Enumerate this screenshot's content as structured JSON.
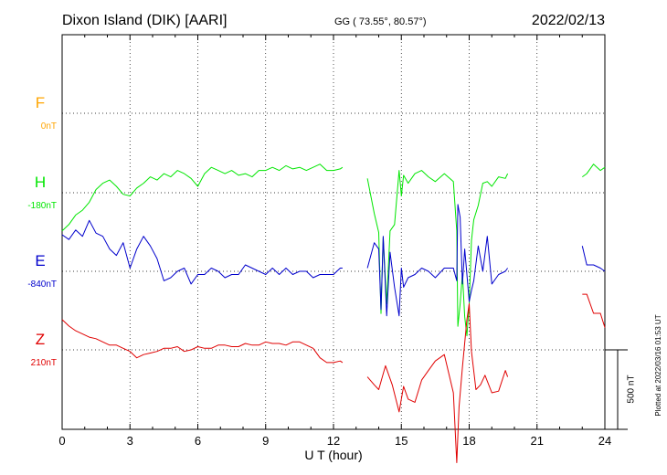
{
  "header": {
    "station": "Dixon Island (DIK)  [AARI]",
    "coords": "GG ( 73.55°,  80.57°)",
    "date": "2022/02/13"
  },
  "plotted_note": "Plotted at 2022/03/16 01:53 UT",
  "scale_bar_label": "500 nT",
  "chart_data": {
    "type": "line",
    "title": "Dixon Island (DIK)  [AARI]",
    "xlabel": "U T (hour)",
    "ylabel": "",
    "xlim": [
      0,
      24
    ],
    "xticks": [
      "0",
      "3",
      "6",
      "9",
      "12",
      "15",
      "18",
      "21",
      "24"
    ],
    "grid": true,
    "scale_bar_nT": 500,
    "series": [
      {
        "name": "F",
        "baseline_label": "0nT",
        "color": "#ffa500",
        "offset_nT": 0,
        "x": [],
        "y": []
      },
      {
        "name": "H",
        "baseline_label": "-180nT",
        "color": "#00e600",
        "offset_nT": -180,
        "x": [
          0.0,
          0.3,
          0.6,
          0.9,
          1.2,
          1.5,
          1.8,
          2.1,
          2.4,
          2.7,
          3.0,
          3.3,
          3.6,
          3.9,
          4.2,
          4.5,
          4.8,
          5.1,
          5.4,
          5.7,
          6.0,
          6.3,
          6.6,
          6.9,
          7.2,
          7.5,
          7.8,
          8.1,
          8.4,
          8.7,
          9.0,
          9.3,
          9.6,
          9.9,
          10.2,
          10.5,
          10.8,
          11.1,
          11.4,
          11.7,
          12.0,
          12.3,
          12.4,
          13.5,
          13.8,
          14.0,
          14.1,
          14.2,
          14.35,
          14.5,
          14.7,
          14.9,
          15.0,
          15.1,
          15.3,
          15.6,
          15.9,
          16.2,
          16.5,
          16.9,
          17.3,
          17.45,
          17.5,
          17.6,
          17.7,
          17.8,
          17.9,
          18.0,
          18.1,
          18.2,
          18.4,
          18.6,
          18.8,
          19.0,
          19.3,
          19.6,
          19.7,
          23.0,
          23.2,
          23.5,
          23.8,
          24.0
        ],
        "y": [
          -420,
          -380,
          -320,
          -290,
          -240,
          -160,
          -120,
          -100,
          -140,
          -190,
          -200,
          -150,
          -120,
          -80,
          -100,
          -60,
          -80,
          -40,
          -60,
          -90,
          -140,
          -60,
          -20,
          -40,
          -60,
          -40,
          -70,
          -60,
          -80,
          -40,
          -40,
          -20,
          -40,
          -10,
          -30,
          -20,
          -40,
          -20,
          0,
          -40,
          -40,
          -30,
          -20,
          -90,
          -310,
          -430,
          -940,
          -460,
          -880,
          -420,
          -380,
          -40,
          -200,
          -70,
          -120,
          -60,
          -40,
          -80,
          -110,
          -60,
          -110,
          -420,
          -1020,
          -880,
          -690,
          -960,
          -1080,
          -880,
          -480,
          -350,
          -260,
          -120,
          -110,
          -140,
          -80,
          -90,
          -60,
          -80,
          -60,
          0,
          -40,
          -20
        ],
        "gaps_after_x": [
          12.4,
          19.7
        ]
      },
      {
        "name": "E",
        "baseline_label": "-840nT",
        "color": "#0000cc",
        "offset_nT": -840,
        "x": [
          0.0,
          0.3,
          0.6,
          0.9,
          1.2,
          1.5,
          1.8,
          2.1,
          2.4,
          2.7,
          3.0,
          3.3,
          3.6,
          3.9,
          4.2,
          4.5,
          4.8,
          5.1,
          5.4,
          5.7,
          6.0,
          6.3,
          6.6,
          6.9,
          7.2,
          7.5,
          7.8,
          8.1,
          8.4,
          8.7,
          9.0,
          9.3,
          9.6,
          9.9,
          10.2,
          10.5,
          10.8,
          11.1,
          11.4,
          11.7,
          12.0,
          12.3,
          12.4,
          13.5,
          13.8,
          14.0,
          14.1,
          14.2,
          14.35,
          14.5,
          14.7,
          14.9,
          15.0,
          15.1,
          15.3,
          15.6,
          15.9,
          16.2,
          16.5,
          16.9,
          17.3,
          17.45,
          17.5,
          17.6,
          17.7,
          17.8,
          17.9,
          18.0,
          18.1,
          18.2,
          18.4,
          18.6,
          18.8,
          19.0,
          19.3,
          19.6,
          19.7,
          23.0,
          23.2,
          23.5,
          23.8,
          24.0
        ],
        "y": [
          -610,
          -640,
          -580,
          -620,
          -520,
          -600,
          -620,
          -700,
          -740,
          -660,
          -820,
          -700,
          -620,
          -680,
          -760,
          -900,
          -880,
          -840,
          -820,
          -920,
          -860,
          -860,
          -820,
          -840,
          -880,
          -860,
          -860,
          -800,
          -820,
          -840,
          -860,
          -820,
          -860,
          -820,
          -860,
          -840,
          -840,
          -880,
          -860,
          -860,
          -860,
          -820,
          -820,
          -820,
          -660,
          -700,
          -1080,
          -620,
          -1120,
          -720,
          -940,
          -1120,
          -820,
          -940,
          -880,
          -860,
          -820,
          -840,
          -880,
          -820,
          -820,
          -900,
          -420,
          -500,
          -920,
          -700,
          -860,
          -1030,
          -960,
          -900,
          -680,
          -840,
          -620,
          -920,
          -860,
          -840,
          -820,
          -680,
          -800,
          -800,
          -820,
          -840
        ],
        "gaps_after_x": [
          12.4,
          19.7
        ]
      },
      {
        "name": "Z",
        "baseline_label": "210nT",
        "color": "#e00000",
        "offset_nT": 210,
        "x": [
          0.0,
          0.3,
          0.6,
          0.9,
          1.2,
          1.5,
          1.8,
          2.1,
          2.4,
          2.7,
          3.0,
          3.3,
          3.6,
          3.9,
          4.2,
          4.5,
          4.8,
          5.1,
          5.4,
          5.7,
          6.0,
          6.3,
          6.6,
          6.9,
          7.2,
          7.5,
          7.8,
          8.1,
          8.4,
          8.7,
          9.0,
          9.3,
          9.6,
          9.9,
          10.2,
          10.5,
          10.8,
          11.1,
          11.4,
          11.7,
          12.0,
          12.3,
          12.4,
          13.5,
          13.8,
          14.0,
          14.3,
          14.6,
          14.9,
          15.1,
          15.3,
          15.6,
          15.9,
          16.2,
          16.5,
          16.9,
          17.3,
          17.45,
          17.55,
          17.7,
          17.9,
          18.0,
          18.1,
          18.3,
          18.5,
          18.7,
          19.0,
          19.3,
          19.6,
          19.7,
          23.0,
          23.2,
          23.5,
          23.8,
          24.0
        ],
        "y": [
          400,
          360,
          330,
          310,
          290,
          280,
          260,
          240,
          240,
          220,
          200,
          160,
          180,
          190,
          200,
          220,
          220,
          230,
          200,
          210,
          230,
          220,
          220,
          240,
          240,
          230,
          230,
          250,
          240,
          240,
          260,
          250,
          250,
          240,
          260,
          260,
          240,
          220,
          160,
          130,
          130,
          140,
          130,
          40,
          -10,
          -40,
          110,
          -10,
          -180,
          -20,
          -100,
          -120,
          20,
          80,
          140,
          180,
          -60,
          -500,
          -150,
          100,
          400,
          500,
          200,
          -40,
          -10,
          50,
          -60,
          -50,
          80,
          40,
          560,
          560,
          440,
          440,
          350
        ],
        "gaps_after_x": [
          12.4,
          19.7
        ]
      }
    ]
  }
}
